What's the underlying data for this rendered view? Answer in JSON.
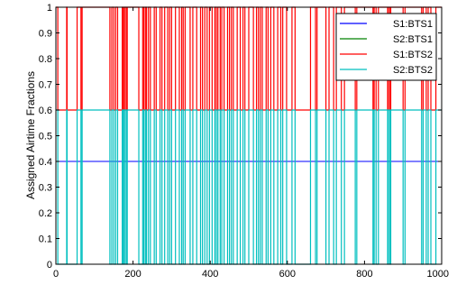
{
  "chart_data": {
    "type": "line",
    "title": "",
    "xlabel": "",
    "ylabel": "Assigned Airtime Fractions",
    "xlim": [
      0,
      1000
    ],
    "ylim": [
      0,
      1
    ],
    "xticks": [
      0,
      200,
      400,
      600,
      800,
      1000
    ],
    "yticks": [
      0,
      0.1,
      0.2,
      0.3,
      0.4,
      0.5,
      0.6,
      0.7,
      0.8,
      0.9,
      1
    ],
    "xtick_labels": [
      "0",
      "200",
      "400",
      "600",
      "800",
      "1000"
    ],
    "ytick_labels": [
      "0",
      "0.1",
      "0.2",
      "0.3",
      "0.4",
      "0.5",
      "0.6",
      "0.7",
      "0.8",
      "0.9",
      "1"
    ],
    "grid": false,
    "legend_position": "top-right",
    "series": [
      {
        "name": "S1:BTS1",
        "color": "#0000ff",
        "constant": 0.4
      },
      {
        "name": "S2:BTS1",
        "color": "#008000",
        "constant": 0.6
      },
      {
        "name": "S1:BTS2",
        "color": "#ff0000",
        "baseline": 0.6,
        "peak": 1.0
      },
      {
        "name": "S2:BTS2",
        "color": "#00bfbf",
        "baseline": 0.0,
        "peak": 0.6
      }
    ],
    "switch_events_x": [
      0,
      5,
      28,
      29,
      55,
      65,
      68,
      140,
      145,
      150,
      155,
      160,
      172,
      175,
      178,
      182,
      185,
      215,
      225,
      228,
      232,
      235,
      240,
      245,
      255,
      260,
      270,
      275,
      282,
      290,
      295,
      300,
      310,
      320,
      326,
      330,
      335,
      348,
      355,
      365,
      375,
      380,
      386,
      392,
      398,
      405,
      412,
      416,
      420,
      426,
      430,
      436,
      445,
      450,
      455,
      460,
      470,
      478,
      485,
      490,
      500,
      512,
      520,
      525,
      530,
      535,
      545,
      550,
      557,
      565,
      575,
      583,
      588,
      598,
      612,
      620,
      660,
      673,
      677,
      700,
      708,
      720,
      727,
      740,
      748,
      776,
      780,
      822,
      825,
      830,
      836,
      860,
      862,
      866,
      868,
      900,
      905,
      948,
      952,
      960,
      965,
      972,
      985
    ]
  }
}
